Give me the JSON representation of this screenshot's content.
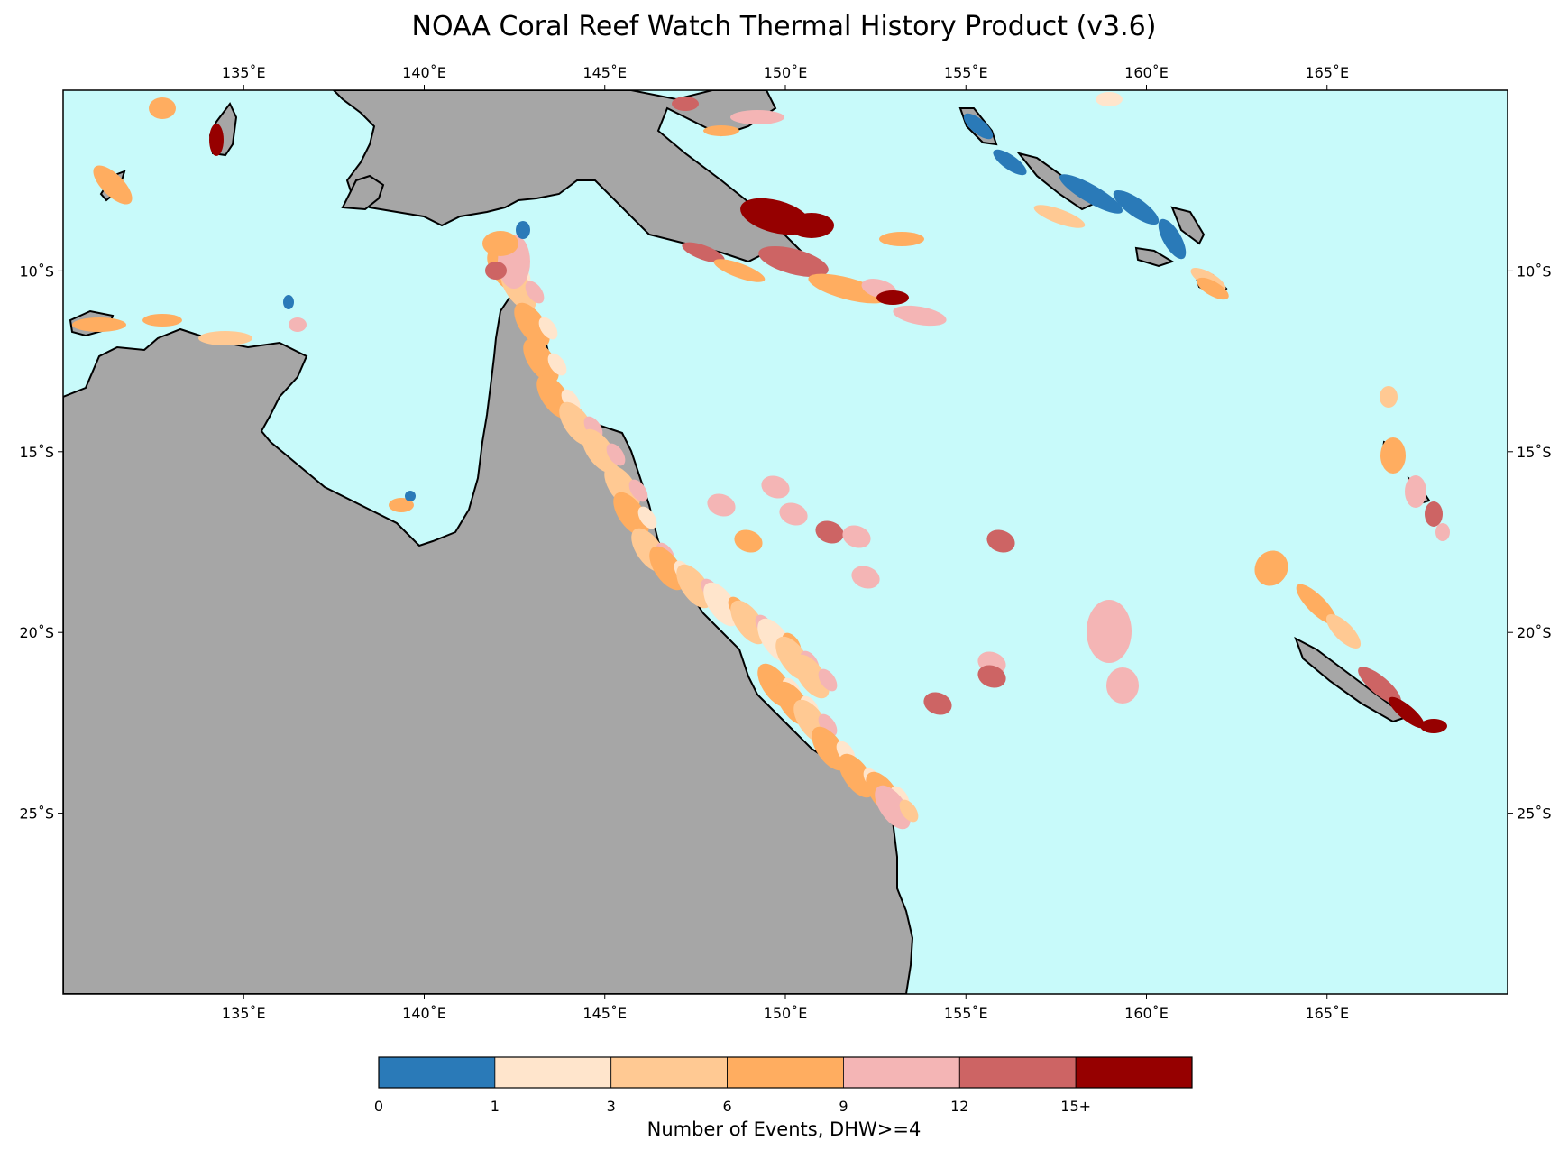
{
  "title": "NOAA Coral Reef Watch Thermal History Product (v3.6)",
  "map": {
    "lon_range": [
      130,
      170
    ],
    "lat_range": [
      -30,
      -5
    ],
    "colors": {
      "ocean": "#c8fafa",
      "land": "#a6a6a6",
      "coast": "#000000"
    },
    "lon_ticks": [
      "135˚E",
      "140˚E",
      "145˚E",
      "150˚E",
      "155˚E",
      "160˚E",
      "165˚E"
    ],
    "lat_ticks": [
      "10˚S",
      "15˚S",
      "20˚S",
      "25˚S"
    ]
  },
  "colorbar": {
    "label": "Number of Events, DHW>=4",
    "tick_labels": [
      "0",
      "1",
      "3",
      "6",
      "9",
      "12",
      "15+"
    ],
    "colors": [
      "#2a7ab8",
      "#ffe5cc",
      "#ffc993",
      "#ffad60",
      "#f4b5b5",
      "#cd6464",
      "#960000"
    ]
  }
}
